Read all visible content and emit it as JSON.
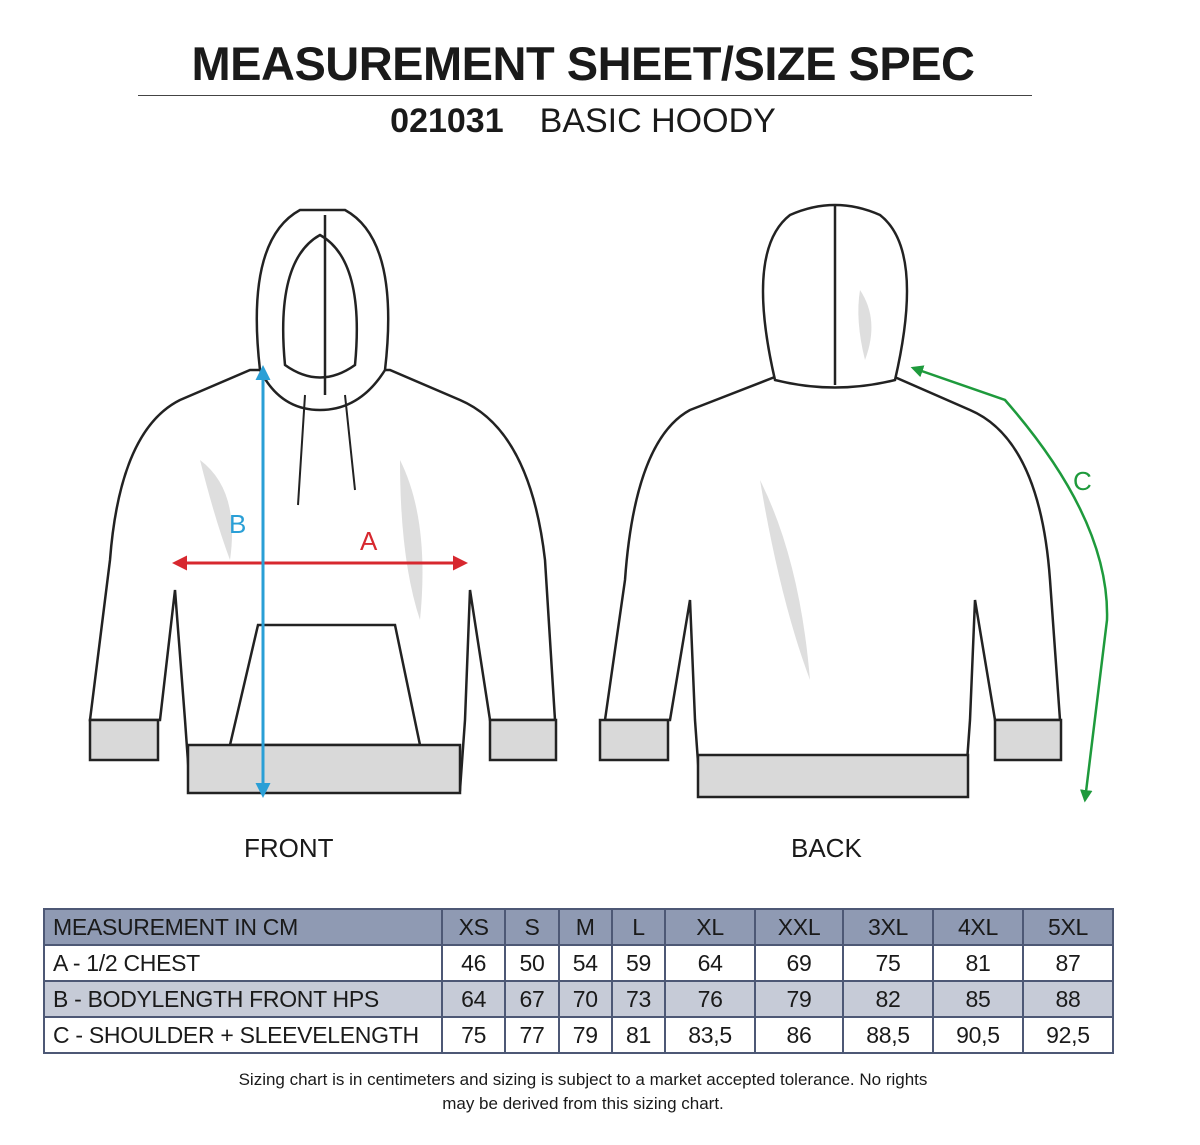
{
  "header": {
    "title": "MEASUREMENT SHEET/SIZE SPEC",
    "code": "021031",
    "product": "BASIC HOODY"
  },
  "views": {
    "front": "FRONT",
    "back": "BACK"
  },
  "markers": {
    "a": "A",
    "b": "B",
    "c": "C"
  },
  "colors": {
    "a": "#d7282f",
    "b": "#2a9fd6",
    "c": "#1e9a3c",
    "header_row": "#8f9ab3",
    "alt_row": "#c6cbd7"
  },
  "table": {
    "header": "MEASUREMENT IN CM",
    "sizes": [
      "XS",
      "S",
      "M",
      "L",
      "XL",
      "XXL",
      "3XL",
      "4XL",
      "5XL"
    ],
    "rows": [
      {
        "label": "A - 1/2 CHEST",
        "values": [
          "46",
          "50",
          "54",
          "59",
          "64",
          "69",
          "75",
          "81",
          "87"
        ]
      },
      {
        "label": "B - BODYLENGTH FRONT HPS",
        "values": [
          "64",
          "67",
          "70",
          "73",
          "76",
          "79",
          "82",
          "85",
          "88"
        ]
      },
      {
        "label": "C - SHOULDER + SLEEVELENGTH",
        "values": [
          "75",
          "77",
          "79",
          "81",
          "83,5",
          "86",
          "88,5",
          "90,5",
          "92,5"
        ]
      }
    ]
  },
  "footnote": {
    "line1": "Sizing chart is in centimeters and sizing is subject to a market accepted tolerance. No rights",
    "line2": "may be derived from this sizing chart."
  }
}
